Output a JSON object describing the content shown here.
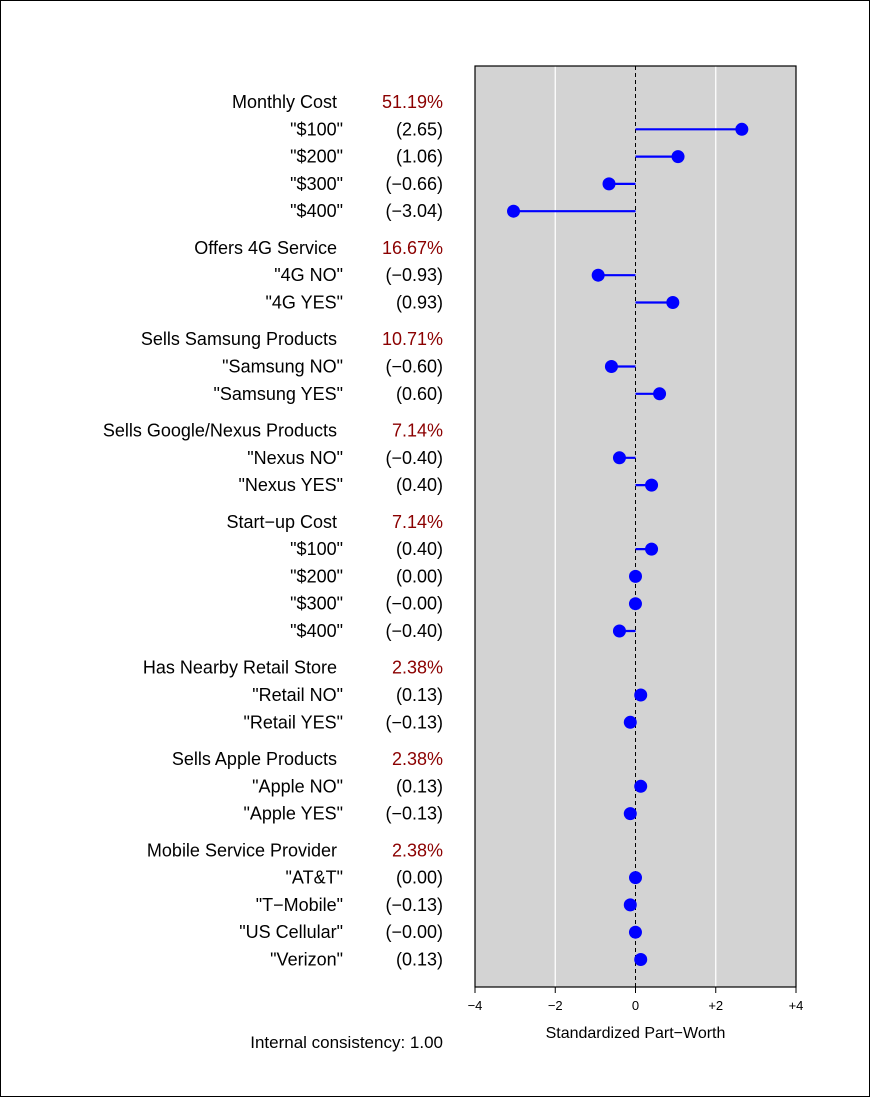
{
  "chart_data": {
    "type": "scatter",
    "subtype": "lollipop",
    "title": "",
    "xlabel": "Standardized Part−Worth",
    "ylabel": "",
    "xlim": [
      -4,
      4
    ],
    "x_ticks": [
      -4,
      -2,
      0,
      2,
      4
    ],
    "x_tick_labels": [
      "−4",
      "−2",
      "0",
      "+2",
      "+4"
    ],
    "grid": "vertical",
    "background_color": "#d3d3d3",
    "point_color": "#0000ff",
    "importance_color": "#8b0000",
    "footnote": "Internal consistency: 1.00",
    "groups": [
      {
        "attribute": "Monthly Cost",
        "importance": "51.19%",
        "levels": [
          {
            "label": "\"$100\"",
            "value_text": "(2.65)",
            "value": 2.65
          },
          {
            "label": "\"$200\"",
            "value_text": "(1.06)",
            "value": 1.06
          },
          {
            "label": "\"$300\"",
            "value_text": "(−0.66)",
            "value": -0.66
          },
          {
            "label": "\"$400\"",
            "value_text": "(−3.04)",
            "value": -3.04
          }
        ]
      },
      {
        "attribute": "Offers 4G Service",
        "importance": "16.67%",
        "levels": [
          {
            "label": "\"4G NO\"",
            "value_text": "(−0.93)",
            "value": -0.93
          },
          {
            "label": "\"4G YES\"",
            "value_text": "(0.93)",
            "value": 0.93
          }
        ]
      },
      {
        "attribute": "Sells Samsung Products",
        "importance": "10.71%",
        "levels": [
          {
            "label": "\"Samsung NO\"",
            "value_text": "(−0.60)",
            "value": -0.6
          },
          {
            "label": "\"Samsung YES\"",
            "value_text": "(0.60)",
            "value": 0.6
          }
        ]
      },
      {
        "attribute": "Sells Google/Nexus Products",
        "importance": "7.14%",
        "levels": [
          {
            "label": "\"Nexus NO\"",
            "value_text": "(−0.40)",
            "value": -0.4
          },
          {
            "label": "\"Nexus YES\"",
            "value_text": "(0.40)",
            "value": 0.4
          }
        ]
      },
      {
        "attribute": "Start−up Cost",
        "importance": "7.14%",
        "levels": [
          {
            "label": "\"$100\"",
            "value_text": "(0.40)",
            "value": 0.4
          },
          {
            "label": "\"$200\"",
            "value_text": "(0.00)",
            "value": 0.0
          },
          {
            "label": "\"$300\"",
            "value_text": "(−0.00)",
            "value": -0.001
          },
          {
            "label": "\"$400\"",
            "value_text": "(−0.40)",
            "value": -0.4
          }
        ]
      },
      {
        "attribute": "Has Nearby Retail Store",
        "importance": "2.38%",
        "levels": [
          {
            "label": "\"Retail NO\"",
            "value_text": "(0.13)",
            "value": 0.13
          },
          {
            "label": "\"Retail YES\"",
            "value_text": "(−0.13)",
            "value": -0.13
          }
        ]
      },
      {
        "attribute": "Sells Apple Products",
        "importance": "2.38%",
        "levels": [
          {
            "label": "\"Apple NO\"",
            "value_text": "(0.13)",
            "value": 0.13
          },
          {
            "label": "\"Apple YES\"",
            "value_text": "(−0.13)",
            "value": -0.13
          }
        ]
      },
      {
        "attribute": "Mobile Service Provider",
        "importance": "2.38%",
        "levels": [
          {
            "label": "\"AT&T\"",
            "value_text": "(0.00)",
            "value": 0.0
          },
          {
            "label": "\"T−Mobile\"",
            "value_text": "(−0.13)",
            "value": -0.13
          },
          {
            "label": "\"US Cellular\"",
            "value_text": "(−0.00)",
            "value": -0.001
          },
          {
            "label": "\"Verizon\"",
            "value_text": "(0.13)",
            "value": 0.13
          }
        ]
      }
    ]
  }
}
